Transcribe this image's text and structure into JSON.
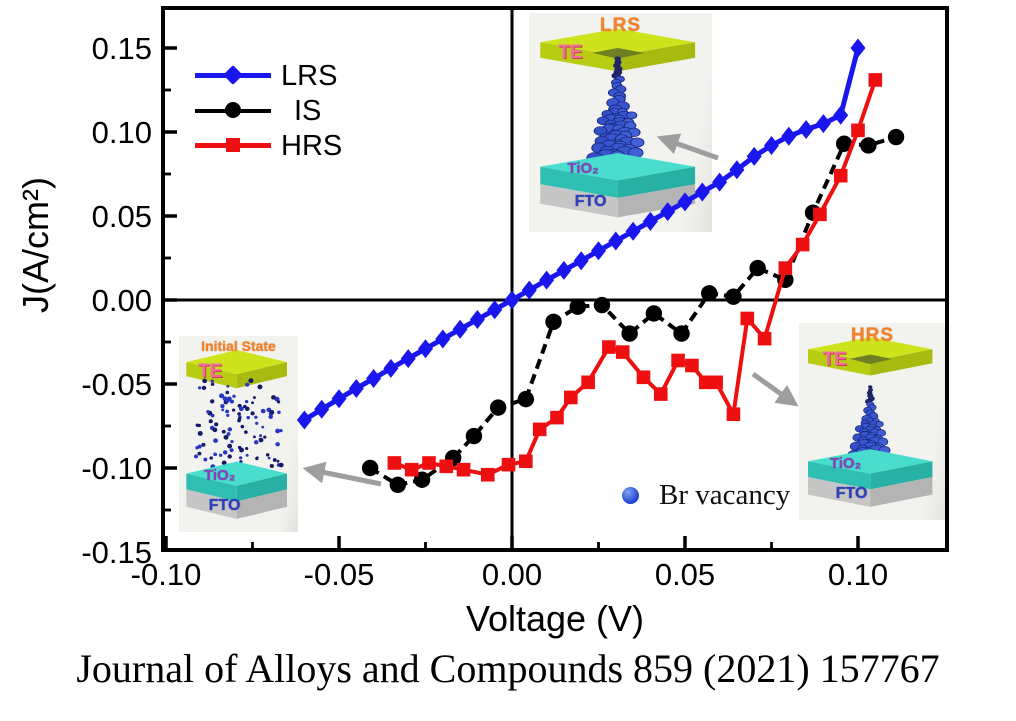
{
  "figure": {
    "caption": "Journal of Alloys and Compounds 859 (2021) 157767"
  },
  "chart_data": {
    "type": "line",
    "title": "",
    "xlabel": "Voltage (V)",
    "ylabel": "J(A/cm²)",
    "xlim": [
      -0.101,
      0.126
    ],
    "ylim": [
      -0.149,
      0.174
    ],
    "grid": "zero-axis-lines-only",
    "legend_position": "top-left",
    "x_ticks": {
      "majors": [
        -0.1,
        -0.05,
        0.0,
        0.05,
        0.1
      ],
      "major_labels": [
        "-0.10",
        "-0.05",
        "0.00",
        "0.05",
        "0.10"
      ],
      "minors": [
        -0.075,
        -0.025,
        0.025,
        0.075
      ]
    },
    "y_ticks": {
      "majors": [
        0.15,
        0.1,
        0.05,
        0.0,
        -0.05,
        -0.1,
        -0.15
      ],
      "major_labels": [
        "0.15",
        "0.10",
        "0.05",
        "0.00",
        "-0.05",
        "-0.10",
        "-0.15"
      ],
      "minors": [
        0.125,
        0.075,
        0.025,
        -0.025,
        -0.075,
        -0.125
      ]
    },
    "series": [
      {
        "name": "LRS",
        "marker": "diamond",
        "color": "#1a17ee",
        "line_width": 5,
        "line_style": "solid",
        "points": [
          [
            -0.06,
            -0.0714
          ],
          [
            -0.055,
            -0.065
          ],
          [
            -0.05,
            -0.0588
          ],
          [
            -0.045,
            -0.0527
          ],
          [
            -0.04,
            -0.0467
          ],
          [
            -0.035,
            -0.0407
          ],
          [
            -0.03,
            -0.0349
          ],
          [
            -0.025,
            -0.029
          ],
          [
            -0.02,
            -0.0232
          ],
          [
            -0.015,
            -0.0174
          ],
          [
            -0.01,
            -0.0116
          ],
          [
            -0.005,
            -0.0058
          ],
          [
            0.0,
            0.0
          ],
          [
            0.005,
            0.0059
          ],
          [
            0.01,
            0.0118
          ],
          [
            0.015,
            0.0176
          ],
          [
            0.02,
            0.0234
          ],
          [
            0.025,
            0.0293
          ],
          [
            0.03,
            0.0351
          ],
          [
            0.035,
            0.0409
          ],
          [
            0.04,
            0.0468
          ],
          [
            0.045,
            0.0526
          ],
          [
            0.05,
            0.0584
          ],
          [
            0.055,
            0.0643
          ],
          [
            0.06,
            0.0702
          ],
          [
            0.065,
            0.0775
          ],
          [
            0.07,
            0.0855
          ],
          [
            0.075,
            0.092
          ],
          [
            0.08,
            0.0975
          ],
          [
            0.085,
            0.1015
          ],
          [
            0.09,
            0.105
          ],
          [
            0.095,
            0.11
          ],
          [
            0.1,
            0.15
          ]
        ]
      },
      {
        "name": "IS",
        "marker": "circle",
        "color": "#000000",
        "line_width": 4,
        "line_style": "dashed",
        "points": [
          [
            -0.041,
            -0.1
          ],
          [
            -0.033,
            -0.11
          ],
          [
            -0.026,
            -0.107
          ],
          [
            -0.017,
            -0.094
          ],
          [
            -0.011,
            -0.081
          ],
          [
            -0.004,
            -0.064
          ],
          [
            0.004,
            -0.059
          ],
          [
            0.012,
            -0.013
          ],
          [
            0.019,
            -0.004
          ],
          [
            0.026,
            -0.003
          ],
          [
            0.034,
            -0.02
          ],
          [
            0.041,
            -0.008
          ],
          [
            0.049,
            -0.02
          ],
          [
            0.057,
            0.004
          ],
          [
            0.064,
            0.002
          ],
          [
            0.071,
            0.019
          ],
          [
            0.079,
            0.012
          ],
          [
            0.087,
            0.052
          ],
          [
            0.096,
            0.093
          ],
          [
            0.103,
            0.092
          ],
          [
            0.111,
            0.097
          ]
        ]
      },
      {
        "name": "HRS",
        "marker": "square",
        "color": "#ee1010",
        "line_width": 4,
        "line_style": "solid",
        "points": [
          [
            -0.034,
            -0.097
          ],
          [
            -0.029,
            -0.101
          ],
          [
            -0.024,
            -0.097
          ],
          [
            -0.019,
            -0.099
          ],
          [
            -0.014,
            -0.101
          ],
          [
            -0.007,
            -0.104
          ],
          [
            -0.001,
            -0.098
          ],
          [
            0.004,
            -0.096
          ],
          [
            0.008,
            -0.077
          ],
          [
            0.013,
            -0.07
          ],
          [
            0.017,
            -0.058
          ],
          [
            0.022,
            -0.049
          ],
          [
            0.028,
            -0.028
          ],
          [
            0.032,
            -0.031
          ],
          [
            0.038,
            -0.046
          ],
          [
            0.043,
            -0.056
          ],
          [
            0.048,
            -0.036
          ],
          [
            0.052,
            -0.039
          ],
          [
            0.056,
            -0.049
          ],
          [
            0.059,
            -0.049
          ],
          [
            0.064,
            -0.068
          ],
          [
            0.068,
            -0.011
          ],
          [
            0.073,
            -0.023
          ],
          [
            0.079,
            0.019
          ],
          [
            0.084,
            0.033
          ],
          [
            0.089,
            0.051
          ],
          [
            0.095,
            0.074
          ],
          [
            0.1,
            0.101
          ],
          [
            0.105,
            0.131
          ]
        ]
      }
    ]
  },
  "annotations": {
    "br_vacancy_label": "Br vacancy"
  },
  "insets": [
    {
      "state_label": "LRS",
      "device": "cone-full",
      "layers": {
        "te": "TE",
        "oxide": "TiO₂",
        "electrode": "FTO"
      }
    },
    {
      "state_label": "Initial State",
      "device": "scatter",
      "layers": {
        "te": "TE",
        "oxide": "TiO₂",
        "electrode": "FTO"
      }
    },
    {
      "state_label": "HRS",
      "device": "cone-partial",
      "layers": {
        "te": "TE",
        "oxide": "TiO₂",
        "electrode": "FTO"
      }
    }
  ],
  "colors": {
    "lrs": "#1a17ee",
    "is": "#000000",
    "hrs": "#ee1010",
    "arrow": "#9e9e9e",
    "state_label": "#f5822a",
    "te_label": "#f06e9a",
    "tio2_label": "#8a3fc0",
    "fto_label": "#2b3fbf",
    "br_vacancy_dot": "#2e49d8"
  }
}
